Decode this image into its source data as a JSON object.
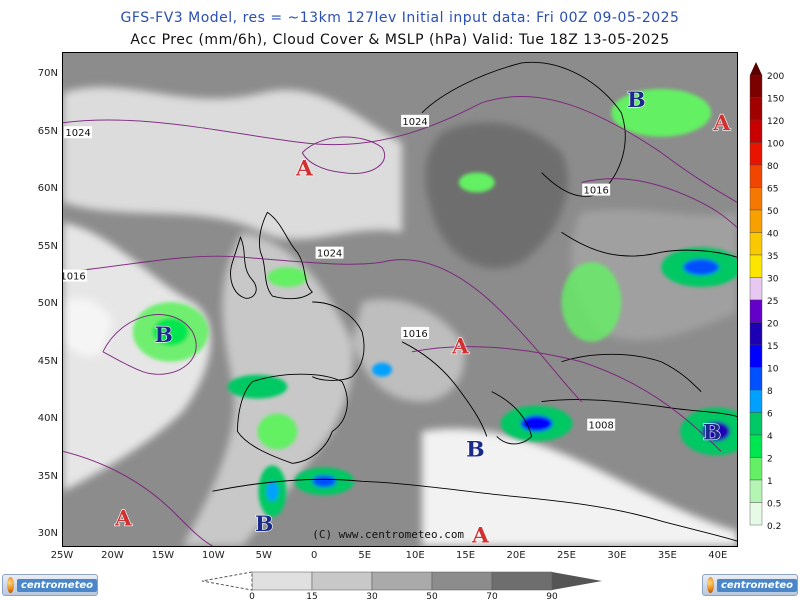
{
  "header": {
    "line1": "GFS-FV3 Model, res = ~13km 127lev   Initial input data: Fri 00Z 09-05-2025",
    "line2": "Acc Prec (mm/6h), Cloud Cover & MSLP (hPa)  Valid: Tue 18Z 13-05-2025"
  },
  "lat_labels": [
    "70N",
    "65N",
    "60N",
    "55N",
    "50N",
    "45N",
    "40N",
    "35N",
    "30N"
  ],
  "lon_labels": [
    "25W",
    "20W",
    "15W",
    "10W",
    "5W",
    "0",
    "5E",
    "10E",
    "15E",
    "20E",
    "25E",
    "30E",
    "35E",
    "40E"
  ],
  "isobar_labels": [
    {
      "text": "1024",
      "lon": -23.5,
      "lat": 65.0
    },
    {
      "text": "1024",
      "lon": 10.0,
      "lat": 66.0
    },
    {
      "text": "1024",
      "lon": 1.5,
      "lat": 54.5
    },
    {
      "text": "1016",
      "lon": -24.0,
      "lat": 52.5
    },
    {
      "text": "1016",
      "lon": 10.0,
      "lat": 47.5
    },
    {
      "text": "1016",
      "lon": 28.0,
      "lat": 60.0
    },
    {
      "text": "1008",
      "lon": 28.5,
      "lat": 39.5
    }
  ],
  "pressure_centers": [
    {
      "type": "H",
      "letter": "A",
      "lon": -1.0,
      "lat": 62.0
    },
    {
      "type": "H",
      "letter": "A",
      "lon": 14.5,
      "lat": 46.5
    },
    {
      "type": "H",
      "letter": "A",
      "lon": 40.5,
      "lat": 66.0
    },
    {
      "type": "H",
      "letter": "A",
      "lon": -19.0,
      "lat": 31.5
    },
    {
      "type": "H",
      "letter": "A",
      "lon": 16.5,
      "lat": 30.0
    },
    {
      "type": "L",
      "letter": "B",
      "lon": -15.0,
      "lat": 47.5
    },
    {
      "type": "L",
      "letter": "B",
      "lon": 32.0,
      "lat": 68.0
    },
    {
      "type": "L",
      "letter": "B",
      "lon": 16.0,
      "lat": 37.5
    },
    {
      "type": "L",
      "letter": "B",
      "lon": 39.5,
      "lat": 39.0
    },
    {
      "type": "L",
      "letter": "B",
      "lon": -5.0,
      "lat": 31.0
    }
  ],
  "copyright": "(C) www.centrometeo.com",
  "precip_scale": {
    "labels": [
      "200",
      "150",
      "120",
      "100",
      "80",
      "65",
      "50",
      "40",
      "35",
      "30",
      "25",
      "20",
      "15",
      "10",
      "8",
      "6",
      "4",
      "2",
      "1",
      "0.5",
      "0.2"
    ],
    "colors": [
      "#5a0000",
      "#7d0000",
      "#a00000",
      "#c80000",
      "#e81400",
      "#f04600",
      "#f57800",
      "#f8a000",
      "#fac800",
      "#fce600",
      "#e6c8f0",
      "#6400c8",
      "#1e00b4",
      "#0000ff",
      "#0050ff",
      "#00a0ff",
      "#00c864",
      "#00e650",
      "#64f064",
      "#b4f5b4",
      "#e6fae6"
    ]
  },
  "cloud_scale": {
    "labels": [
      "0",
      "15",
      "30",
      "50",
      "70",
      "90"
    ],
    "colors": [
      "#ffffff",
      "#e0e0e0",
      "#c8c8c8",
      "#aaaaaa",
      "#8c8c8c",
      "#6e6e6e"
    ]
  },
  "logos": {
    "left": "centrometeo",
    "right": "centrometeo"
  },
  "colors": {
    "high_letter": "#d03030",
    "low_letter": "#1a2a8a",
    "isobar": "#7a1e7a",
    "coast": "#000000"
  }
}
